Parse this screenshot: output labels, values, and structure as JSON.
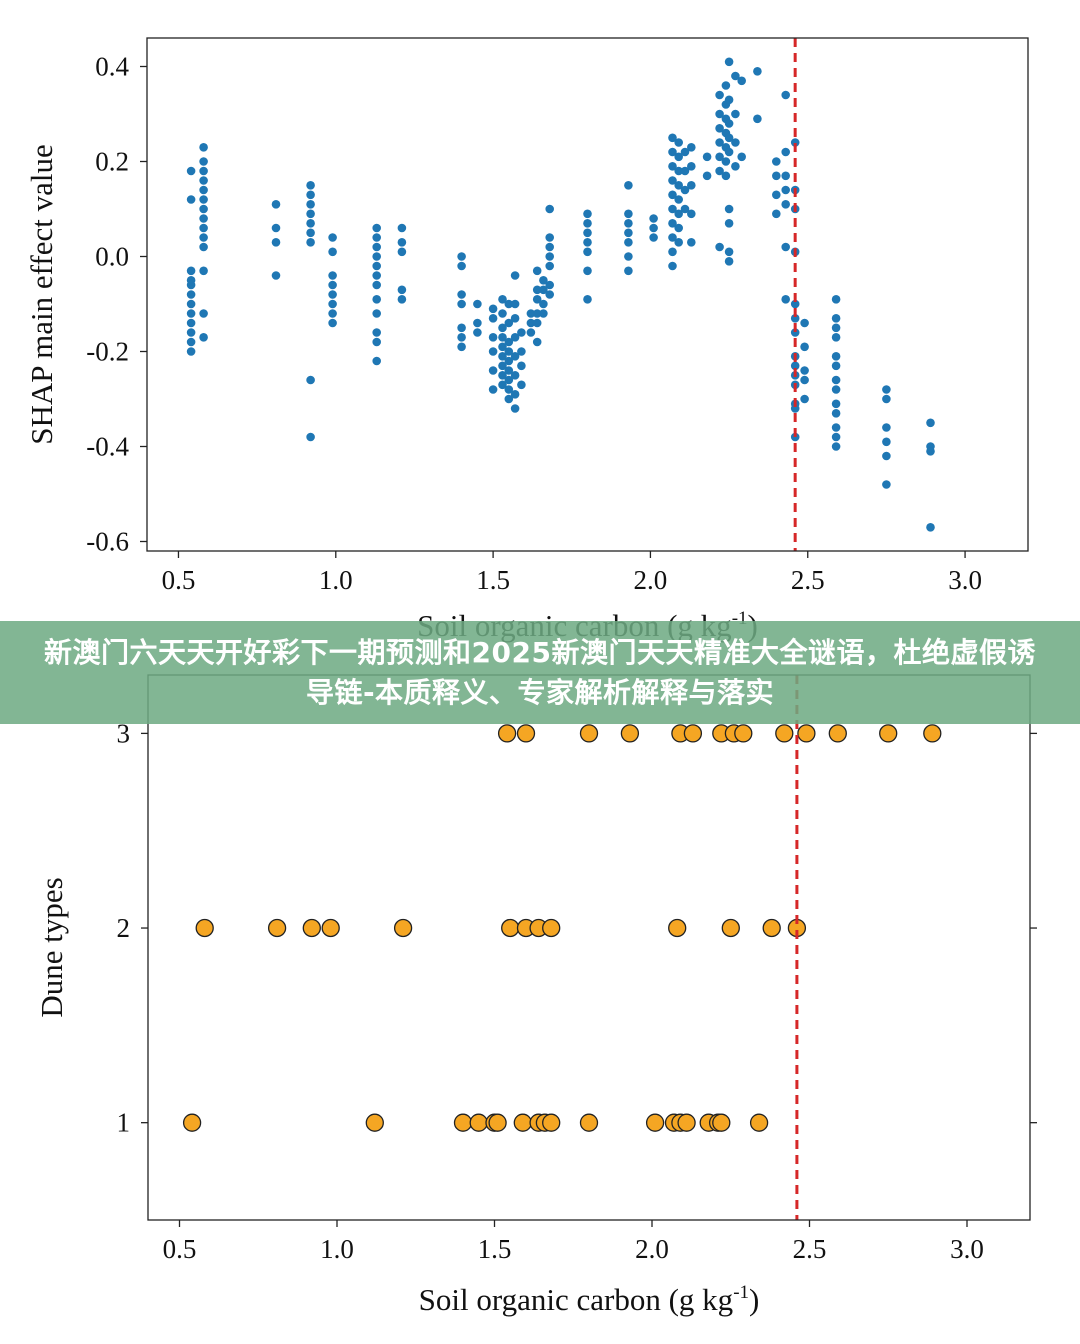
{
  "banner": {
    "text": "新澳门六天天开好彩下一期预测和2025新澳门天天精准大全谜语，杜绝虚假诱导链-本质释义、专家解析解释与落实"
  },
  "colors": {
    "shap_points": "#1f77b4",
    "dune_points": "#f5a623",
    "dune_edge": "#222222",
    "threshold_line": "#d62728",
    "banner_bg": "#6eaa82"
  },
  "chart_data": [
    {
      "type": "scatter",
      "title": "",
      "xlabel": "Soil organic carbon (g kg",
      "xlabel_sup": "-1",
      "xlabel_end": ")",
      "ylabel": "SHAP main effect value",
      "xlim": [
        0.4,
        3.2
      ],
      "ylim": [
        -0.62,
        0.46
      ],
      "xticks": [
        0.5,
        1.0,
        1.5,
        2.0,
        2.5,
        3.0
      ],
      "xtick_labels": [
        "0.5",
        "1.0",
        "1.5",
        "2.0",
        "2.5",
        "3.0"
      ],
      "yticks": [
        0.4,
        0.2,
        0.0,
        -0.2,
        -0.4,
        -0.6
      ],
      "ytick_labels": [
        "0.4",
        "0.2",
        "0.0",
        "-0.2",
        "-0.4",
        "-0.6"
      ],
      "threshold_x": 2.46,
      "grid": false,
      "points": [
        [
          0.54,
          0.18
        ],
        [
          0.54,
          0.12
        ],
        [
          0.54,
          -0.03
        ],
        [
          0.54,
          -0.05
        ],
        [
          0.54,
          -0.06
        ],
        [
          0.54,
          -0.08
        ],
        [
          0.54,
          -0.1
        ],
        [
          0.54,
          -0.12
        ],
        [
          0.54,
          -0.14
        ],
        [
          0.54,
          -0.16
        ],
        [
          0.54,
          -0.18
        ],
        [
          0.54,
          -0.2
        ],
        [
          0.58,
          0.23
        ],
        [
          0.58,
          0.2
        ],
        [
          0.58,
          0.18
        ],
        [
          0.58,
          0.16
        ],
        [
          0.58,
          0.14
        ],
        [
          0.58,
          0.12
        ],
        [
          0.58,
          0.1
        ],
        [
          0.58,
          0.08
        ],
        [
          0.58,
          0.06
        ],
        [
          0.58,
          0.04
        ],
        [
          0.58,
          0.02
        ],
        [
          0.58,
          -0.03
        ],
        [
          0.58,
          -0.12
        ],
        [
          0.58,
          -0.17
        ],
        [
          0.81,
          0.11
        ],
        [
          0.81,
          0.06
        ],
        [
          0.81,
          0.03
        ],
        [
          0.81,
          -0.04
        ],
        [
          0.92,
          0.15
        ],
        [
          0.92,
          0.13
        ],
        [
          0.92,
          0.11
        ],
        [
          0.92,
          0.09
        ],
        [
          0.92,
          0.07
        ],
        [
          0.92,
          0.05
        ],
        [
          0.92,
          0.03
        ],
        [
          0.92,
          -0.26
        ],
        [
          0.92,
          -0.38
        ],
        [
          0.99,
          0.04
        ],
        [
          0.99,
          0.01
        ],
        [
          0.99,
          -0.04
        ],
        [
          0.99,
          -0.06
        ],
        [
          0.99,
          -0.08
        ],
        [
          0.99,
          -0.1
        ],
        [
          0.99,
          -0.12
        ],
        [
          0.99,
          -0.14
        ],
        [
          1.13,
          0.06
        ],
        [
          1.13,
          0.04
        ],
        [
          1.13,
          0.02
        ],
        [
          1.13,
          0.0
        ],
        [
          1.13,
          -0.02
        ],
        [
          1.13,
          -0.04
        ],
        [
          1.13,
          -0.06
        ],
        [
          1.13,
          -0.09
        ],
        [
          1.13,
          -0.12
        ],
        [
          1.13,
          -0.16
        ],
        [
          1.13,
          -0.18
        ],
        [
          1.13,
          -0.22
        ],
        [
          1.21,
          0.06
        ],
        [
          1.21,
          0.03
        ],
        [
          1.21,
          0.01
        ],
        [
          1.21,
          -0.07
        ],
        [
          1.21,
          -0.09
        ],
        [
          1.4,
          0.0
        ],
        [
          1.4,
          -0.02
        ],
        [
          1.4,
          -0.08
        ],
        [
          1.4,
          -0.1
        ],
        [
          1.4,
          -0.15
        ],
        [
          1.4,
          -0.17
        ],
        [
          1.4,
          -0.19
        ],
        [
          1.45,
          -0.1
        ],
        [
          1.45,
          -0.14
        ],
        [
          1.45,
          -0.16
        ],
        [
          1.5,
          -0.11
        ],
        [
          1.5,
          -0.13
        ],
        [
          1.5,
          -0.17
        ],
        [
          1.5,
          -0.2
        ],
        [
          1.5,
          -0.24
        ],
        [
          1.5,
          -0.28
        ],
        [
          1.53,
          -0.09
        ],
        [
          1.53,
          -0.12
        ],
        [
          1.53,
          -0.15
        ],
        [
          1.53,
          -0.17
        ],
        [
          1.53,
          -0.19
        ],
        [
          1.53,
          -0.21
        ],
        [
          1.53,
          -0.23
        ],
        [
          1.53,
          -0.25
        ],
        [
          1.53,
          -0.27
        ],
        [
          1.55,
          -0.1
        ],
        [
          1.55,
          -0.14
        ],
        [
          1.55,
          -0.18
        ],
        [
          1.55,
          -0.2
        ],
        [
          1.55,
          -0.22
        ],
        [
          1.55,
          -0.24
        ],
        [
          1.55,
          -0.26
        ],
        [
          1.55,
          -0.28
        ],
        [
          1.55,
          -0.3
        ],
        [
          1.57,
          -0.04
        ],
        [
          1.57,
          -0.1
        ],
        [
          1.57,
          -0.13
        ],
        [
          1.57,
          -0.17
        ],
        [
          1.57,
          -0.21
        ],
        [
          1.57,
          -0.25
        ],
        [
          1.57,
          -0.29
        ],
        [
          1.57,
          -0.32
        ],
        [
          1.59,
          -0.16
        ],
        [
          1.59,
          -0.2
        ],
        [
          1.59,
          -0.23
        ],
        [
          1.59,
          -0.27
        ],
        [
          1.62,
          -0.12
        ],
        [
          1.62,
          -0.14
        ],
        [
          1.62,
          -0.16
        ],
        [
          1.64,
          -0.03
        ],
        [
          1.64,
          -0.07
        ],
        [
          1.64,
          -0.09
        ],
        [
          1.64,
          -0.12
        ],
        [
          1.64,
          -0.14
        ],
        [
          1.64,
          -0.18
        ],
        [
          1.66,
          -0.05
        ],
        [
          1.66,
          -0.07
        ],
        [
          1.66,
          -0.1
        ],
        [
          1.66,
          -0.12
        ],
        [
          1.68,
          0.1
        ],
        [
          1.68,
          0.04
        ],
        [
          1.68,
          0.02
        ],
        [
          1.68,
          0.0
        ],
        [
          1.68,
          -0.02
        ],
        [
          1.68,
          -0.06
        ],
        [
          1.68,
          -0.08
        ],
        [
          1.8,
          0.09
        ],
        [
          1.8,
          0.07
        ],
        [
          1.8,
          0.05
        ],
        [
          1.8,
          0.03
        ],
        [
          1.8,
          0.01
        ],
        [
          1.8,
          -0.03
        ],
        [
          1.8,
          -0.09
        ],
        [
          1.93,
          0.15
        ],
        [
          1.93,
          0.09
        ],
        [
          1.93,
          0.07
        ],
        [
          1.93,
          0.05
        ],
        [
          1.93,
          0.03
        ],
        [
          1.93,
          0.0
        ],
        [
          1.93,
          -0.03
        ],
        [
          2.01,
          0.08
        ],
        [
          2.01,
          0.06
        ],
        [
          2.01,
          0.04
        ],
        [
          2.07,
          0.25
        ],
        [
          2.07,
          0.22
        ],
        [
          2.07,
          0.19
        ],
        [
          2.07,
          0.16
        ],
        [
          2.07,
          0.13
        ],
        [
          2.07,
          0.1
        ],
        [
          2.07,
          0.07
        ],
        [
          2.07,
          0.04
        ],
        [
          2.07,
          0.01
        ],
        [
          2.07,
          -0.02
        ],
        [
          2.09,
          0.24
        ],
        [
          2.09,
          0.21
        ],
        [
          2.09,
          0.18
        ],
        [
          2.09,
          0.15
        ],
        [
          2.09,
          0.12
        ],
        [
          2.09,
          0.09
        ],
        [
          2.09,
          0.06
        ],
        [
          2.09,
          0.03
        ],
        [
          2.11,
          0.22
        ],
        [
          2.11,
          0.18
        ],
        [
          2.11,
          0.14
        ],
        [
          2.11,
          0.1
        ],
        [
          2.13,
          0.23
        ],
        [
          2.13,
          0.19
        ],
        [
          2.13,
          0.15
        ],
        [
          2.13,
          0.09
        ],
        [
          2.13,
          0.03
        ],
        [
          2.18,
          0.21
        ],
        [
          2.18,
          0.17
        ],
        [
          2.22,
          0.34
        ],
        [
          2.22,
          0.3
        ],
        [
          2.22,
          0.27
        ],
        [
          2.22,
          0.24
        ],
        [
          2.22,
          0.21
        ],
        [
          2.22,
          0.18
        ],
        [
          2.22,
          0.02
        ],
        [
          2.24,
          0.36
        ],
        [
          2.24,
          0.32
        ],
        [
          2.24,
          0.29
        ],
        [
          2.24,
          0.26
        ],
        [
          2.24,
          0.23
        ],
        [
          2.24,
          0.2
        ],
        [
          2.24,
          0.17
        ],
        [
          2.25,
          0.41
        ],
        [
          2.25,
          0.33
        ],
        [
          2.25,
          0.28
        ],
        [
          2.25,
          0.25
        ],
        [
          2.25,
          0.22
        ],
        [
          2.25,
          0.1
        ],
        [
          2.25,
          0.07
        ],
        [
          2.25,
          0.01
        ],
        [
          2.25,
          -0.01
        ],
        [
          2.27,
          0.38
        ],
        [
          2.27,
          0.3
        ],
        [
          2.27,
          0.24
        ],
        [
          2.27,
          0.19
        ],
        [
          2.29,
          0.37
        ],
        [
          2.29,
          0.21
        ],
        [
          2.34,
          0.39
        ],
        [
          2.34,
          0.29
        ],
        [
          2.4,
          0.2
        ],
        [
          2.4,
          0.17
        ],
        [
          2.4,
          0.13
        ],
        [
          2.4,
          0.09
        ],
        [
          2.43,
          0.34
        ],
        [
          2.43,
          0.22
        ],
        [
          2.43,
          0.17
        ],
        [
          2.43,
          0.14
        ],
        [
          2.43,
          0.11
        ],
        [
          2.43,
          0.02
        ],
        [
          2.43,
          -0.09
        ],
        [
          2.46,
          0.24
        ],
        [
          2.46,
          0.14
        ],
        [
          2.46,
          0.1
        ],
        [
          2.46,
          0.01
        ],
        [
          2.46,
          -0.1
        ],
        [
          2.46,
          -0.13
        ],
        [
          2.46,
          -0.16
        ],
        [
          2.46,
          -0.21
        ],
        [
          2.46,
          -0.23
        ],
        [
          2.46,
          -0.25
        ],
        [
          2.46,
          -0.27
        ],
        [
          2.46,
          -0.31
        ],
        [
          2.46,
          -0.32
        ],
        [
          2.46,
          -0.38
        ],
        [
          2.49,
          -0.14
        ],
        [
          2.49,
          -0.19
        ],
        [
          2.49,
          -0.24
        ],
        [
          2.49,
          -0.26
        ],
        [
          2.49,
          -0.3
        ],
        [
          2.59,
          -0.09
        ],
        [
          2.59,
          -0.13
        ],
        [
          2.59,
          -0.15
        ],
        [
          2.59,
          -0.17
        ],
        [
          2.59,
          -0.21
        ],
        [
          2.59,
          -0.23
        ],
        [
          2.59,
          -0.26
        ],
        [
          2.59,
          -0.28
        ],
        [
          2.59,
          -0.31
        ],
        [
          2.59,
          -0.33
        ],
        [
          2.59,
          -0.36
        ],
        [
          2.59,
          -0.38
        ],
        [
          2.59,
          -0.4
        ],
        [
          2.75,
          -0.28
        ],
        [
          2.75,
          -0.3
        ],
        [
          2.75,
          -0.36
        ],
        [
          2.75,
          -0.39
        ],
        [
          2.75,
          -0.42
        ],
        [
          2.75,
          -0.48
        ],
        [
          2.89,
          -0.35
        ],
        [
          2.89,
          -0.4
        ],
        [
          2.89,
          -0.41
        ],
        [
          2.89,
          -0.57
        ]
      ]
    },
    {
      "type": "scatter",
      "title": "",
      "xlabel": "Soil organic carbon (g kg",
      "xlabel_sup": "-1",
      "xlabel_end": ")",
      "ylabel": "Dune types",
      "xlim": [
        0.4,
        3.2
      ],
      "ylim": [
        0.5,
        3.3
      ],
      "xticks": [
        0.5,
        1.0,
        1.5,
        2.0,
        2.5,
        3.0
      ],
      "xtick_labels": [
        "0.5",
        "1.0",
        "1.5",
        "2.0",
        "2.5",
        "3.0"
      ],
      "yticks": [
        3,
        2,
        1
      ],
      "ytick_labels": [
        "3",
        "2",
        "1"
      ],
      "threshold_x": 2.46,
      "grid": false,
      "points": [
        [
          1.54,
          3
        ],
        [
          1.6,
          3
        ],
        [
          1.8,
          3
        ],
        [
          1.93,
          3
        ],
        [
          2.09,
          3
        ],
        [
          2.13,
          3
        ],
        [
          2.22,
          3
        ],
        [
          2.26,
          3
        ],
        [
          2.29,
          3
        ],
        [
          2.42,
          3
        ],
        [
          2.49,
          3
        ],
        [
          2.59,
          3
        ],
        [
          2.75,
          3
        ],
        [
          2.89,
          3
        ],
        [
          0.58,
          2
        ],
        [
          0.81,
          2
        ],
        [
          0.92,
          2
        ],
        [
          0.98,
          2
        ],
        [
          1.21,
          2
        ],
        [
          1.55,
          2
        ],
        [
          1.6,
          2
        ],
        [
          1.64,
          2
        ],
        [
          1.68,
          2
        ],
        [
          2.08,
          2
        ],
        [
          2.25,
          2
        ],
        [
          2.38,
          2
        ],
        [
          2.46,
          2
        ],
        [
          0.54,
          1
        ],
        [
          1.12,
          1
        ],
        [
          1.4,
          1
        ],
        [
          1.45,
          1
        ],
        [
          1.5,
          1
        ],
        [
          1.51,
          1
        ],
        [
          1.59,
          1
        ],
        [
          1.64,
          1
        ],
        [
          1.66,
          1
        ],
        [
          1.68,
          1
        ],
        [
          1.8,
          1
        ],
        [
          2.01,
          1
        ],
        [
          2.07,
          1
        ],
        [
          2.09,
          1
        ],
        [
          2.11,
          1
        ],
        [
          2.18,
          1
        ],
        [
          2.21,
          1
        ],
        [
          2.22,
          1
        ],
        [
          2.34,
          1
        ]
      ]
    }
  ]
}
